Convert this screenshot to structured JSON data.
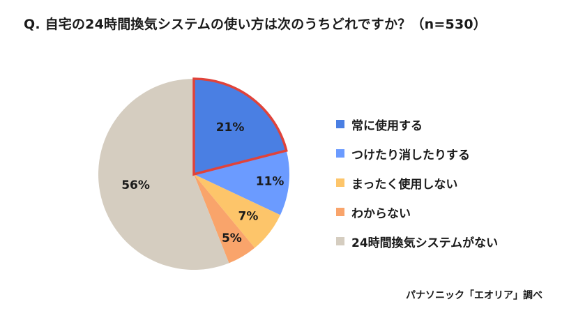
{
  "chart_data": {
    "type": "pie",
    "title": "Q. 自宅の24時間換気システムの使い方は次のうちどれですか？（n=530）",
    "source": "パナソニック「エオリア」調べ",
    "categories": [
      "常に使用する",
      "つけたり消したりする",
      "まったく使用しない",
      "わからない",
      "24時間換気システムがない"
    ],
    "values": [
      21,
      11,
      7,
      5,
      56
    ],
    "labels": [
      "21%",
      "11%",
      "7%",
      "5%",
      "56%"
    ],
    "colors": [
      "#4a7fe3",
      "#6b9bff",
      "#fdc56a",
      "#f9a46b",
      "#d5cdc0"
    ],
    "highlight_index": 0,
    "highlight_color": "#e0433a",
    "legend_position": "right"
  }
}
